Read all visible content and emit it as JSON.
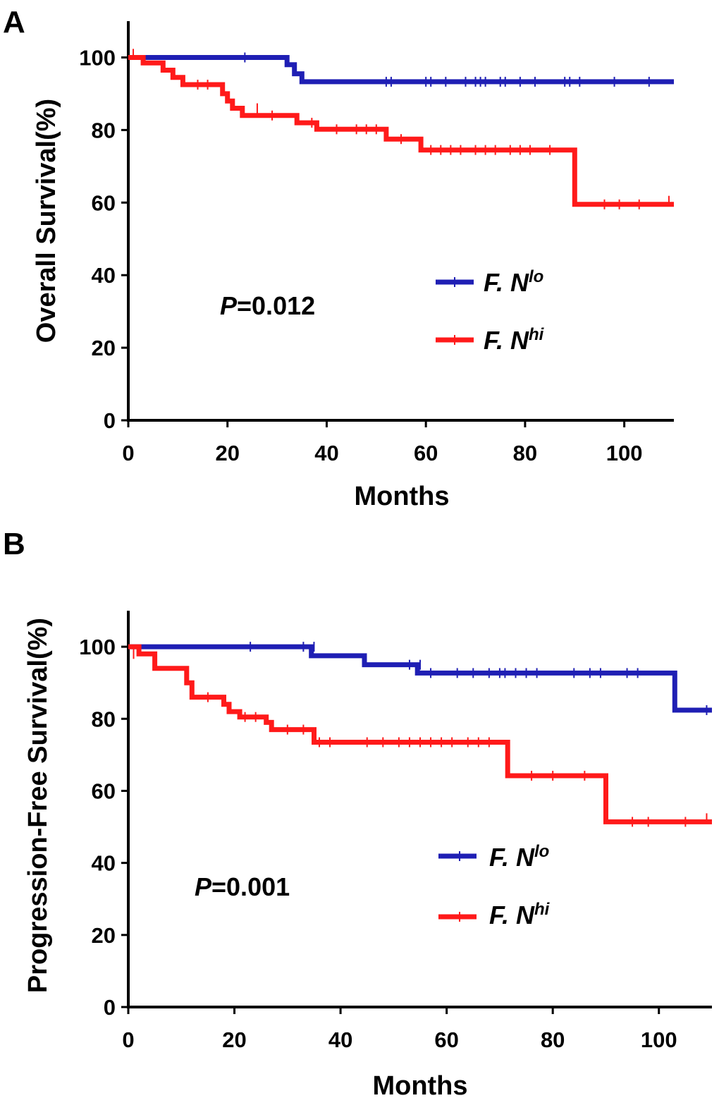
{
  "chart_data": [
    {
      "panel_label": "A",
      "type": "line",
      "subtype": "kaplan-meier",
      "xlabel": "Months",
      "ylabel": "Overall Survival(%)",
      "xlim": [
        0,
        110
      ],
      "ylim": [
        0,
        110
      ],
      "x_ticks": [
        "0",
        "20",
        "40",
        "60",
        "80",
        "100"
      ],
      "y_ticks": [
        "0",
        "20",
        "40",
        "60",
        "80",
        "100"
      ],
      "p_label": "P",
      "p_value": "=0.012",
      "legend_position": "center-right",
      "series": [
        {
          "name_main": "F. N",
          "name_sup": "lo",
          "color": "#1F1FB4",
          "steps": [
            [
              0,
              100
            ],
            [
              32,
              100
            ],
            [
              32,
              98
            ],
            [
              33.5,
              98
            ],
            [
              33.5,
              95.5
            ],
            [
              35,
              95.5
            ],
            [
              35,
              93.3
            ],
            [
              110,
              93.3
            ]
          ],
          "censors": [
            [
              23.5,
              100
            ],
            [
              52,
              93.3
            ],
            [
              53,
              93.3
            ],
            [
              60,
              93.3
            ],
            [
              61,
              93.3
            ],
            [
              64,
              93.3
            ],
            [
              68,
              93.3
            ],
            [
              70,
              93.3
            ],
            [
              71,
              93.3
            ],
            [
              72,
              93.3
            ],
            [
              75,
              93.3
            ],
            [
              76,
              93.3
            ],
            [
              79,
              93.3
            ],
            [
              82,
              93.3
            ],
            [
              88,
              93.3
            ],
            [
              89,
              93.3
            ],
            [
              91,
              93.3
            ],
            [
              98,
              93.3
            ],
            [
              105,
              93.3
            ]
          ]
        },
        {
          "name_main": "F. N",
          "name_sup": "hi",
          "color": "#FF1A1A",
          "steps": [
            [
              0,
              100
            ],
            [
              3,
              100
            ],
            [
              3,
              98.5
            ],
            [
              7,
              98.5
            ],
            [
              7,
              96.5
            ],
            [
              9,
              96.5
            ],
            [
              9,
              94.5
            ],
            [
              11,
              94.5
            ],
            [
              11,
              92.5
            ],
            [
              19,
              92.5
            ],
            [
              19,
              90
            ],
            [
              20,
              90
            ],
            [
              20,
              88
            ],
            [
              21,
              88
            ],
            [
              21,
              86
            ],
            [
              23,
              86
            ],
            [
              23,
              84
            ],
            [
              34,
              84
            ],
            [
              34,
              82
            ],
            [
              38,
              82
            ],
            [
              38,
              80.2
            ],
            [
              52,
              80.2
            ],
            [
              52,
              77.5
            ],
            [
              59,
              77.5
            ],
            [
              59,
              74.5
            ],
            [
              90,
              74.5
            ],
            [
              90,
              59.5
            ],
            [
              110,
              59.5
            ]
          ],
          "censors": [
            [
              1,
              101
            ],
            [
              14,
              92.5
            ],
            [
              16,
              92.5
            ],
            [
              26,
              86
            ],
            [
              29,
              84
            ],
            [
              37,
              82
            ],
            [
              42,
              80.2
            ],
            [
              46,
              80.2
            ],
            [
              48,
              80.2
            ],
            [
              50,
              80.2
            ],
            [
              55,
              77.5
            ],
            [
              61,
              74.5
            ],
            [
              63,
              74.5
            ],
            [
              65,
              74.5
            ],
            [
              67,
              74.5
            ],
            [
              70,
              74.5
            ],
            [
              72,
              74.5
            ],
            [
              74,
              74.5
            ],
            [
              77,
              74.5
            ],
            [
              79,
              74.5
            ],
            [
              81,
              74.5
            ],
            [
              85,
              74.5
            ],
            [
              96,
              59.5
            ],
            [
              99,
              59.5
            ],
            [
              103,
              59.5
            ],
            [
              109,
              60.5
            ]
          ]
        }
      ]
    },
    {
      "panel_label": "B",
      "type": "line",
      "subtype": "kaplan-meier",
      "xlabel": "Months",
      "ylabel": "Progression-Free Survival(%)",
      "xlim": [
        0,
        110
      ],
      "ylim": [
        0,
        110
      ],
      "x_ticks": [
        "0",
        "20",
        "40",
        "60",
        "80",
        "100"
      ],
      "y_ticks": [
        "0",
        "20",
        "40",
        "60",
        "80",
        "100"
      ],
      "p_label": "P",
      "p_value": "=0.001",
      "legend_position": "center-right",
      "series": [
        {
          "name_main": "F. N",
          "name_sup": "lo",
          "color": "#1F1FB4",
          "steps": [
            [
              0,
              100
            ],
            [
              34.5,
              100
            ],
            [
              34.5,
              97.5
            ],
            [
              44.5,
              97.5
            ],
            [
              44.5,
              95
            ],
            [
              54.5,
              95
            ],
            [
              54.5,
              92.7
            ],
            [
              103,
              92.7
            ],
            [
              103,
              82.4
            ],
            [
              110,
              82.4
            ]
          ],
          "censors": [
            [
              23,
              100
            ],
            [
              33,
              100
            ],
            [
              35,
              100
            ],
            [
              53,
              95
            ],
            [
              55,
              95
            ],
            [
              57,
              92.7
            ],
            [
              62,
              92.7
            ],
            [
              65,
              92.7
            ],
            [
              68,
              92.7
            ],
            [
              70,
              92.7
            ],
            [
              71,
              92.7
            ],
            [
              73,
              92.7
            ],
            [
              75,
              92.7
            ],
            [
              77,
              92.7
            ],
            [
              84,
              92.7
            ],
            [
              87,
              92.7
            ],
            [
              89,
              92.7
            ],
            [
              94,
              92.7
            ],
            [
              96,
              92.7
            ],
            [
              109,
              82.4
            ]
          ]
        },
        {
          "name_main": "F. N",
          "name_sup": "hi",
          "color": "#FF1A1A",
          "steps": [
            [
              0,
              100
            ],
            [
              2,
              100
            ],
            [
              2,
              98
            ],
            [
              5,
              98
            ],
            [
              5,
              94
            ],
            [
              11,
              94
            ],
            [
              11,
              90
            ],
            [
              12,
              90
            ],
            [
              12,
              86
            ],
            [
              18,
              86
            ],
            [
              18,
              84
            ],
            [
              19,
              84
            ],
            [
              19,
              82
            ],
            [
              21,
              82
            ],
            [
              21,
              80.5
            ],
            [
              26,
              80.5
            ],
            [
              26,
              79
            ],
            [
              27,
              79
            ],
            [
              27,
              77
            ],
            [
              35,
              77
            ],
            [
              35,
              73.5
            ],
            [
              71.5,
              73.5
            ],
            [
              71.5,
              64.2
            ],
            [
              90,
              64.2
            ],
            [
              90,
              51.4
            ],
            [
              110,
              51.4
            ]
          ],
          "censors": [
            [
              1,
              98
            ],
            [
              15,
              86
            ],
            [
              22,
              80.5
            ],
            [
              24,
              80.5
            ],
            [
              30,
              77
            ],
            [
              33,
              77
            ],
            [
              36,
              73.5
            ],
            [
              38,
              73.5
            ],
            [
              45,
              73.5
            ],
            [
              48,
              73.5
            ],
            [
              51,
              73.5
            ],
            [
              53,
              73.5
            ],
            [
              55,
              73.5
            ],
            [
              57,
              73.5
            ],
            [
              59,
              73.5
            ],
            [
              61,
              73.5
            ],
            [
              64,
              73.5
            ],
            [
              66,
              73.5
            ],
            [
              68,
              73.5
            ],
            [
              76,
              64.2
            ],
            [
              80,
              64.2
            ],
            [
              86,
              64.2
            ],
            [
              95,
              51.4
            ],
            [
              98,
              51.4
            ],
            [
              105,
              51.4
            ],
            [
              109,
              52.4
            ]
          ]
        }
      ]
    }
  ]
}
